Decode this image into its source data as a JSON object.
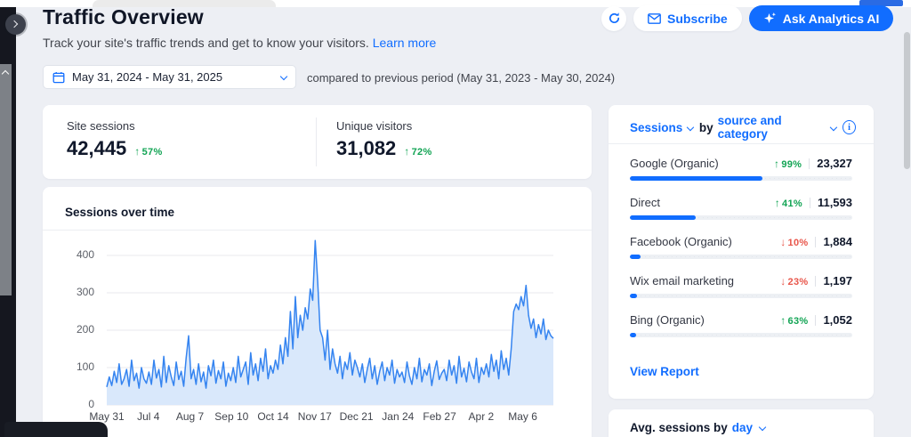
{
  "header": {
    "title": "Traffic Overview",
    "subtitle": "Track your site's traffic trends and get to know your visitors.",
    "learn_more_label": "Learn more",
    "subscribe_label": "Subscribe",
    "ask_ai_label": "Ask Analytics AI"
  },
  "filters": {
    "date_range": "May 31, 2024 - May 31, 2025",
    "comparison_note": "compared to previous period (May 31, 2023 - May 30, 2024)"
  },
  "kpis": [
    {
      "label": "Site sessions",
      "value": "42,445",
      "change": "57%",
      "direction": "up"
    },
    {
      "label": "Unique visitors",
      "value": "31,082",
      "change": "72%",
      "direction": "up"
    }
  ],
  "chart_data": {
    "type": "area",
    "title": "Sessions over time",
    "xlabel": "",
    "ylabel": "",
    "ylim": [
      0,
      450
    ],
    "y_ticks": [
      0,
      100,
      200,
      300,
      400
    ],
    "x_tick_labels": [
      "May 31",
      "Jul 4",
      "Aug 7",
      "Sep 10",
      "Oct 14",
      "Nov 17",
      "Dec 21",
      "Jan 24",
      "Feb 27",
      "Apr 2",
      "May 6"
    ],
    "x_tick_interval_days": 34,
    "x_range_days": 365,
    "grid": true,
    "values": [
      48,
      75,
      52,
      90,
      60,
      110,
      55,
      70,
      95,
      50,
      120,
      65,
      85,
      45,
      100,
      70,
      58,
      88,
      55,
      120,
      72,
      95,
      48,
      130,
      60,
      105,
      75,
      52,
      115,
      68,
      90,
      50,
      125,
      185,
      70,
      95,
      55,
      110,
      62,
      88,
      45,
      105,
      78,
      120,
      58,
      92,
      70,
      115,
      50,
      85,
      65,
      100,
      60,
      130,
      75,
      95,
      115,
      55,
      140,
      80,
      110,
      65,
      125,
      90,
      150,
      70,
      105,
      85,
      120,
      95,
      160,
      110,
      180,
      130,
      250,
      150,
      290,
      180,
      240,
      200,
      260,
      230,
      310,
      280,
      440,
      330,
      200,
      180,
      120,
      200,
      95,
      150,
      110,
      85,
      130,
      70,
      115,
      95,
      140,
      80,
      120,
      100,
      75,
      110,
      60,
      95,
      125,
      70,
      105,
      55,
      90,
      115,
      65,
      100,
      80,
      120,
      58,
      95,
      75,
      88,
      60,
      115,
      78,
      55,
      100,
      70,
      125,
      62,
      95,
      80,
      110,
      52,
      90,
      118,
      68,
      85,
      95,
      65,
      120,
      80,
      105,
      58,
      130,
      75,
      98,
      62,
      115,
      88,
      70,
      125,
      60,
      100,
      82,
      110,
      75,
      135,
      90,
      120,
      70,
      145,
      95,
      125,
      80,
      150,
      250,
      270,
      255,
      290,
      265,
      320,
      240,
      205,
      230,
      180,
      215,
      190,
      230,
      175,
      200,
      185,
      178
    ]
  },
  "sources_panel": {
    "metric_label": "Sessions",
    "by_label": "by",
    "dimension_label": "source and category",
    "rows": [
      {
        "name": "Google (Organic)",
        "change": "99%",
        "direction": "up",
        "value": "23,327",
        "value_num": 23327
      },
      {
        "name": "Direct",
        "change": "41%",
        "direction": "up",
        "value": "11,593",
        "value_num": 11593
      },
      {
        "name": "Facebook (Organic)",
        "change": "10%",
        "direction": "down",
        "value": "1,884",
        "value_num": 1884
      },
      {
        "name": "Wix email marketing",
        "change": "23%",
        "direction": "down",
        "value": "1,197",
        "value_num": 1197
      },
      {
        "name": "Bing (Organic)",
        "change": "63%",
        "direction": "up",
        "value": "1,052",
        "value_num": 1052
      }
    ],
    "view_report_label": "View Report"
  },
  "avg_sessions_panel": {
    "title_prefix": "Avg. sessions by",
    "dimension_label": "day"
  },
  "icons": {
    "refresh": "refresh-arrows",
    "subscribe": "envelope",
    "ask_ai": "sparkles",
    "date_picker": "calendar",
    "dropdown": "chevron-down",
    "info": "info-circle",
    "expand_rail": "chevron-right",
    "rail_scroll": "chevron-up"
  },
  "colors": {
    "accent": "#116dff",
    "positive": "#12a454",
    "negative": "#e8554a",
    "chart_line": "#3584f0",
    "chart_fill": "#d9e8fb",
    "background": "#edeff4"
  }
}
